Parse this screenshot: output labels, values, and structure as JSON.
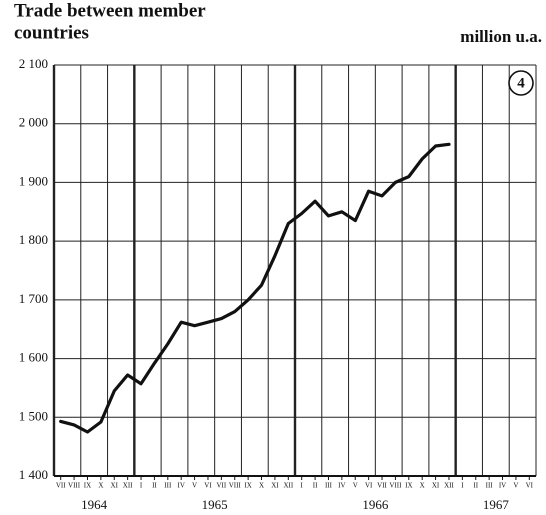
{
  "chart_data": {
    "type": "line",
    "title": [
      "Trade between member",
      "countries"
    ],
    "unit_label": "million u.a.",
    "chart_number": "4",
    "categories": [
      "VII",
      "VIII",
      "IX",
      "X",
      "XI",
      "XII",
      "I",
      "II",
      "III",
      "IV",
      "V",
      "VI",
      "VII",
      "VIII",
      "IX",
      "X",
      "XI",
      "XII",
      "I",
      "II",
      "III",
      "IV",
      "V",
      "VI",
      "VII",
      "VIII",
      "IX",
      "X",
      "XI",
      "XII",
      "I",
      "II",
      "III",
      "IV",
      "V",
      "VI"
    ],
    "years": [
      "1964",
      "1965",
      "1966",
      "1967"
    ],
    "series": [
      {
        "name": "Trade between member countries",
        "color": "#111111",
        "values": [
          1493,
          1487,
          1475,
          1492,
          1545,
          1572,
          1557,
          1592,
          1625,
          1662,
          1656,
          1662,
          1668,
          1680,
          1700,
          1725,
          1775,
          1830,
          1847,
          1868,
          1843,
          1850,
          1835,
          1885,
          1877,
          1900,
          1910,
          1940,
          1962,
          1965,
          null,
          null,
          null,
          null,
          null,
          null
        ]
      }
    ],
    "ylim": [
      1400,
      2100
    ],
    "yticks": [
      {
        "value": 1400,
        "label": "1 400"
      },
      {
        "value": 1500,
        "label": "1 500"
      },
      {
        "value": 1600,
        "label": "1 600"
      },
      {
        "value": 1700,
        "label": "1 700"
      },
      {
        "value": 1800,
        "label": "1 800"
      },
      {
        "value": 1900,
        "label": "1 900"
      },
      {
        "value": 2000,
        "label": "2 000"
      },
      {
        "value": 2100,
        "label": "2 100"
      }
    ],
    "grid": true
  }
}
